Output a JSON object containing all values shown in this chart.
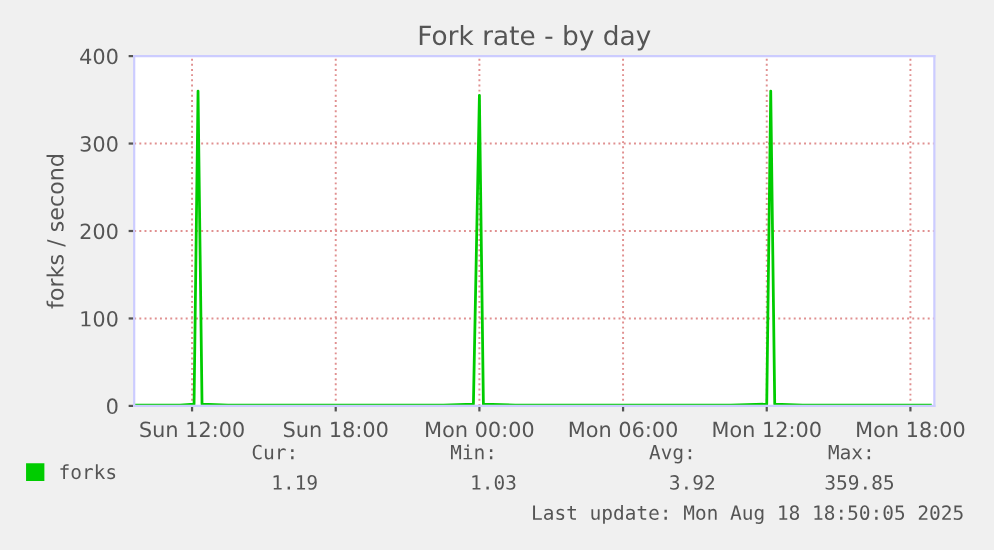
{
  "chart_data": {
    "type": "line",
    "title": "Fork rate - by day",
    "ylabel": "forks / second",
    "x": [
      "2025-08-17T09:35",
      "2025-08-17T10:30",
      "2025-08-17T11:30",
      "2025-08-17T12:05",
      "2025-08-17T12:15",
      "2025-08-17T12:25",
      "2025-08-17T13:30",
      "2025-08-17T15:00",
      "2025-08-17T16:30",
      "2025-08-17T18:00",
      "2025-08-17T19:30",
      "2025-08-17T21:00",
      "2025-08-17T22:30",
      "2025-08-17T23:45",
      "2025-08-18T00:00",
      "2025-08-18T00:10",
      "2025-08-18T01:30",
      "2025-08-18T03:00",
      "2025-08-18T04:30",
      "2025-08-18T06:00",
      "2025-08-18T07:30",
      "2025-08-18T09:00",
      "2025-08-18T10:30",
      "2025-08-18T12:00",
      "2025-08-18T12:10",
      "2025-08-18T12:20",
      "2025-08-18T13:30",
      "2025-08-18T15:00",
      "2025-08-18T16:30",
      "2025-08-18T18:00",
      "2025-08-18T18:50"
    ],
    "series": [
      {
        "name": "forks",
        "color": "#00cc00",
        "values": [
          1,
          1,
          1,
          2,
          360,
          2,
          1,
          1,
          1,
          1,
          1,
          1,
          1,
          2,
          355,
          2,
          1,
          1,
          1,
          1,
          1,
          1,
          1,
          2,
          360,
          2,
          1,
          1,
          1,
          1,
          1
        ]
      }
    ],
    "xlim": [
      "2025-08-17T09:35",
      "2025-08-18T19:00"
    ],
    "xticks": [
      {
        "value": "2025-08-17T12:00",
        "label": "Sun 12:00"
      },
      {
        "value": "2025-08-17T18:00",
        "label": "Sun 18:00"
      },
      {
        "value": "2025-08-18T00:00",
        "label": "Mon 00:00"
      },
      {
        "value": "2025-08-18T06:00",
        "label": "Mon 06:00"
      },
      {
        "value": "2025-08-18T12:00",
        "label": "Mon 12:00"
      },
      {
        "value": "2025-08-18T18:00",
        "label": "Mon 18:00"
      }
    ],
    "ylim": [
      0,
      400
    ],
    "yticks": [
      0,
      100,
      200,
      300,
      400
    ],
    "grid": true,
    "legend": "bottom left",
    "marker": "none",
    "line_style": "solid",
    "annotations": [
      "Cur:",
      "Min:",
      "Avg:",
      "Max:",
      "1.19",
      "1.03",
      "3.92",
      "359.85",
      "Last update: Mon Aug 18 18:50:05 2025"
    ]
  }
}
